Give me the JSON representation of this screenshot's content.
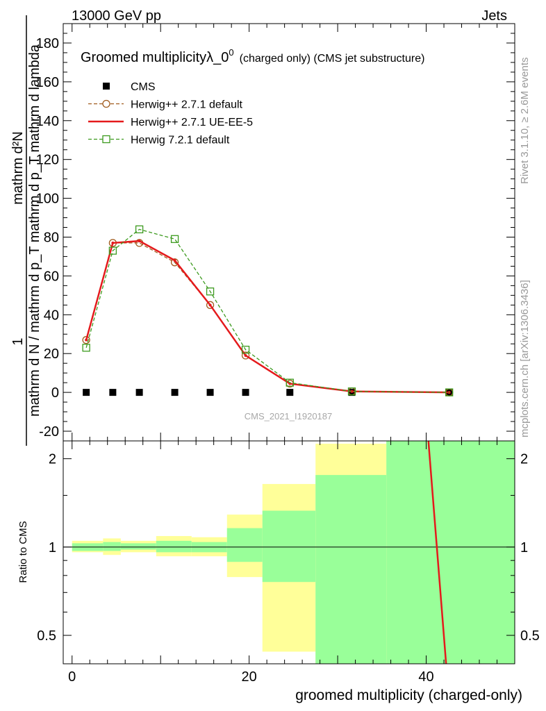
{
  "header": {
    "left": "13000 GeV pp",
    "right": "Jets"
  },
  "side_labels": {
    "rivet": "Rivet 3.1.10, ≥ 2.6M events",
    "mcplots": "mcplots.cern.ch [arXiv:1306.3436]"
  },
  "watermark": "CMS_2021_I1920187",
  "chart_data": {
    "type": "line",
    "title": "Groomed multiplicityλ_0",
    "title_sup": "0",
    "title_suffix": "(charged only) (CMS jet substructure)",
    "ylabel_top": "1",
    "ylabel_num": "mathrm d²N",
    "ylabel_den": "mathrm d N / mathrm d p_T mathrm d p_T mathrm d lambda",
    "xlabel": "groomed multiplicity (charged-only)",
    "xlim": [
      -1,
      50
    ],
    "ylim": [
      -25,
      190
    ],
    "yticks": [
      -20,
      0,
      20,
      40,
      60,
      80,
      100,
      120,
      140,
      160,
      180
    ],
    "xticks": [
      0,
      20,
      40
    ],
    "legend_position": "top-left",
    "legend": [
      {
        "name": "CMS",
        "marker": "square-filled",
        "color": "#000000",
        "dash": "none"
      },
      {
        "name": "Herwig++ 2.7.1 default",
        "marker": "circle-open",
        "color": "#a05a1c",
        "dash": "dashed"
      },
      {
        "name": "Herwig++ 2.7.1 UE-EE-5",
        "marker": "none",
        "color": "#e41a1c",
        "dash": "solid"
      },
      {
        "name": "Herwig 7.2.1 default",
        "marker": "square-open",
        "color": "#3c9a1e",
        "dash": "dashed"
      }
    ],
    "series": [
      {
        "name": "CMS",
        "x": [
          1.6,
          4.6,
          7.6,
          11.6,
          15.6,
          19.6,
          24.6,
          31.6,
          42.6
        ],
        "values": [
          0,
          0,
          0,
          0,
          0,
          0,
          0,
          0,
          0
        ]
      },
      {
        "name": "Herwig++ 2.7.1 default",
        "x": [
          1.6,
          4.6,
          7.6,
          11.6,
          15.6,
          19.6,
          24.6,
          31.6,
          42.6
        ],
        "values": [
          27,
          77,
          77,
          67,
          45,
          19,
          4.5,
          0.5,
          0
        ]
      },
      {
        "name": "Herwig++ 2.7.1 UE-EE-5",
        "x": [
          1.6,
          4.6,
          7.6,
          11.6,
          15.6,
          19.6,
          24.6,
          31.6,
          42.6
        ],
        "values": [
          27,
          77,
          78,
          68,
          45,
          19,
          4.5,
          0.5,
          0
        ]
      },
      {
        "name": "Herwig 7.2.1 default",
        "x": [
          1.6,
          4.6,
          7.6,
          11.6,
          15.6,
          19.6,
          24.6,
          31.6,
          42.6
        ],
        "values": [
          23,
          73,
          84,
          79,
          52,
          22,
          5,
          0.5,
          0
        ]
      }
    ],
    "ratio": {
      "ylabel": "Ratio to CMS",
      "ylim": [
        0.4,
        2.3
      ],
      "yticks": [
        0.5,
        1,
        2
      ],
      "bins": [
        {
          "x0": 0,
          "x1": 3.5,
          "g": [
            0.97,
            1.03
          ],
          "y": [
            0.96,
            1.05
          ]
        },
        {
          "x0": 3.5,
          "x1": 5.5,
          "g": [
            0.97,
            1.04
          ],
          "y": [
            0.94,
            1.07
          ]
        },
        {
          "x0": 5.5,
          "x1": 9.5,
          "g": [
            0.98,
            1.03
          ],
          "y": [
            0.96,
            1.05
          ]
        },
        {
          "x0": 9.5,
          "x1": 13.5,
          "g": [
            0.96,
            1.05
          ],
          "y": [
            0.93,
            1.09
          ]
        },
        {
          "x0": 13.5,
          "x1": 17.5,
          "g": [
            0.96,
            1.04
          ],
          "y": [
            0.93,
            1.08
          ]
        },
        {
          "x0": 17.5,
          "x1": 21.5,
          "g": [
            0.89,
            1.16
          ],
          "y": [
            0.79,
            1.29
          ]
        },
        {
          "x0": 21.5,
          "x1": 27.5,
          "g": [
            0.76,
            1.33
          ],
          "y": [
            0.44,
            1.64
          ]
        },
        {
          "x0": 27.5,
          "x1": 35.5,
          "g": [
            0.3,
            1.76
          ],
          "y": [
            0.3,
            2.25
          ]
        },
        {
          "x0": 35.5,
          "x1": 50,
          "g": [
            0.3,
            2.3
          ],
          "y": [
            0.3,
            2.3
          ]
        }
      ],
      "line": {
        "name": "Herwig++ 2.7.1 UE-EE-5",
        "x": [
          40.2,
          42.4
        ],
        "values": [
          2.4,
          0.35
        ]
      }
    }
  }
}
